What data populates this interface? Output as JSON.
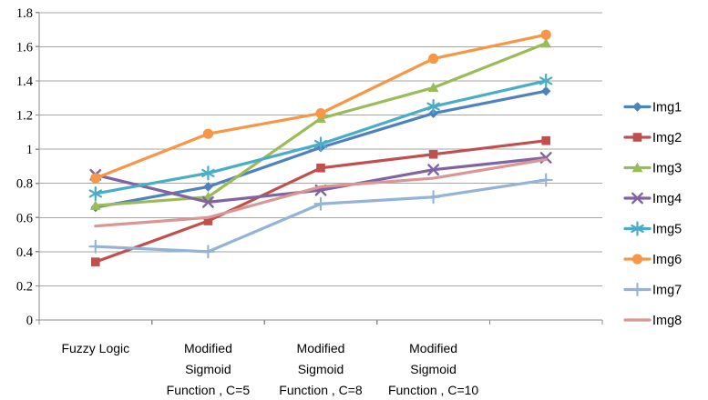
{
  "chart_data": {
    "type": "line",
    "title": "",
    "xlabel": "",
    "ylabel": "",
    "ylim": [
      0,
      1.8
    ],
    "ytick_step": 0.2,
    "ytick_labels": [
      "0",
      "0.2",
      "0.4",
      "0.6",
      "0.8",
      "1",
      "1.2",
      "1.4",
      "1.6",
      "1.8"
    ],
    "grid": true,
    "legend_position": "right",
    "axis_color": "#8c8c8c",
    "grid_color": "#a6a6a6",
    "categories": [
      "Fuzzy Logic",
      "Modified Sigmoid Function , C=5",
      "Modified Sigmoid Function , C=8",
      "Modified Sigmoid Function , C=10",
      ""
    ],
    "category_lines": [
      [
        "Fuzzy Logic"
      ],
      [
        "Modified",
        "Sigmoid",
        "Function , C=5"
      ],
      [
        "Modified",
        "Sigmoid",
        "Function , C=8"
      ],
      [
        "Modified",
        "Sigmoid",
        "Function , C=10"
      ],
      []
    ],
    "series": [
      {
        "name": "Img1",
        "color": "#4F81BD",
        "marker": "diamond",
        "values": [
          0.66,
          0.78,
          1.01,
          1.21,
          1.34
        ]
      },
      {
        "name": "Img2",
        "color": "#C0504D",
        "marker": "square",
        "values": [
          0.34,
          0.58,
          0.89,
          0.97,
          1.05
        ]
      },
      {
        "name": "Img3",
        "color": "#9BBB59",
        "marker": "triangle",
        "values": [
          0.67,
          0.72,
          1.18,
          1.36,
          1.62
        ]
      },
      {
        "name": "Img4",
        "color": "#8064A2",
        "marker": "x",
        "values": [
          0.85,
          0.69,
          0.76,
          0.88,
          0.95
        ]
      },
      {
        "name": "Img5",
        "color": "#4BACC6",
        "marker": "asterisk",
        "values": [
          0.74,
          0.86,
          1.03,
          1.25,
          1.4
        ]
      },
      {
        "name": "Img6",
        "color": "#F79646",
        "marker": "circle",
        "values": [
          0.83,
          1.09,
          1.21,
          1.53,
          1.67
        ]
      },
      {
        "name": "Img7",
        "color": "#95B3D7",
        "marker": "plus",
        "values": [
          0.43,
          0.4,
          0.68,
          0.72,
          0.82
        ]
      },
      {
        "name": "Img8",
        "color": "#D99694",
        "marker": "none",
        "values": [
          0.55,
          0.6,
          0.78,
          0.83,
          0.94
        ]
      }
    ]
  }
}
